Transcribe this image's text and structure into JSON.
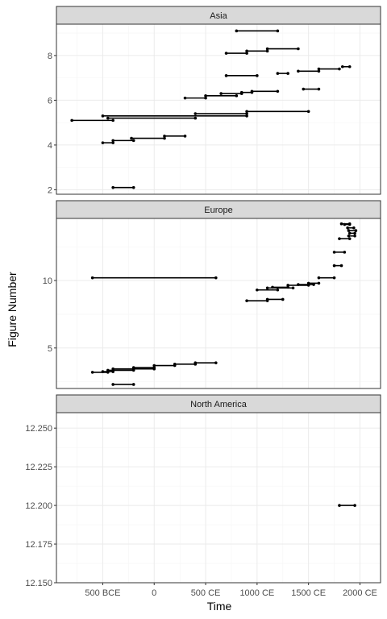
{
  "chart_data": {
    "type": "segment",
    "xlabel": "Time",
    "ylabel": "Figure Number",
    "x_range": [
      -950,
      2200
    ],
    "x_ticks": [
      {
        "value": -500,
        "label": "500 BCE"
      },
      {
        "value": 0,
        "label": "0"
      },
      {
        "value": 500,
        "label": "500 CE"
      },
      {
        "value": 1000,
        "label": "1000 CE"
      },
      {
        "value": 1500,
        "label": "1500 CE"
      },
      {
        "value": 2000,
        "label": "2000 CE"
      }
    ],
    "grid": true,
    "panels": [
      {
        "name": "Asia",
        "ylim": [
          1.8,
          9.4
        ],
        "y_ticks": [
          2,
          4,
          6,
          8
        ],
        "segments": [
          {
            "start": 800,
            "end": 1200,
            "y": 9.1
          },
          {
            "start": 700,
            "end": 900,
            "y": 8.1
          },
          {
            "start": 900,
            "end": 1100,
            "y": 8.2
          },
          {
            "start": 1100,
            "end": 1400,
            "y": 8.3
          },
          {
            "start": 1830,
            "end": 1900,
            "y": 7.5
          },
          {
            "start": 1600,
            "end": 1800,
            "y": 7.4
          },
          {
            "start": 1400,
            "end": 1600,
            "y": 7.3
          },
          {
            "start": 1200,
            "end": 1300,
            "y": 7.2
          },
          {
            "start": 700,
            "end": 1000,
            "y": 7.1
          },
          {
            "start": 1450,
            "end": 1600,
            "y": 6.5
          },
          {
            "start": 950,
            "end": 1200,
            "y": 6.4
          },
          {
            "start": 850,
            "end": 950,
            "y": 6.35
          },
          {
            "start": 650,
            "end": 850,
            "y": 6.3
          },
          {
            "start": 500,
            "end": 800,
            "y": 6.2
          },
          {
            "start": 300,
            "end": 500,
            "y": 6.1
          },
          {
            "start": 900,
            "end": 1500,
            "y": 5.5
          },
          {
            "start": 400,
            "end": 900,
            "y": 5.4
          },
          {
            "start": -500,
            "end": 900,
            "y": 5.3
          },
          {
            "start": -450,
            "end": 400,
            "y": 5.2
          },
          {
            "start": -800,
            "end": -400,
            "y": 5.1
          },
          {
            "start": 100,
            "end": 300,
            "y": 4.4
          },
          {
            "start": -221,
            "end": 100,
            "y": 4.3
          },
          {
            "start": -400,
            "end": -200,
            "y": 4.2
          },
          {
            "start": -500,
            "end": -400,
            "y": 4.1
          },
          {
            "start": -400,
            "end": -200,
            "y": 2.1
          }
        ]
      },
      {
        "name": "Europe",
        "ylim": [
          2.0,
          14.6
        ],
        "y_ticks": [
          5,
          10
        ],
        "segments": [
          {
            "start": 1820,
            "end": 1900,
            "y": 14.2
          },
          {
            "start": 1850,
            "end": 1900,
            "y": 14.15
          },
          {
            "start": 1880,
            "end": 1940,
            "y": 13.9
          },
          {
            "start": 1890,
            "end": 1960,
            "y": 13.7
          },
          {
            "start": 1900,
            "end": 1950,
            "y": 13.5
          },
          {
            "start": 1890,
            "end": 1950,
            "y": 13.3
          },
          {
            "start": 1800,
            "end": 1900,
            "y": 13.1
          },
          {
            "start": 1750,
            "end": 1850,
            "y": 12.1
          },
          {
            "start": 1750,
            "end": 1820,
            "y": 11.1
          },
          {
            "start": 1600,
            "end": 1750,
            "y": 10.2
          },
          {
            "start": 1500,
            "end": 1600,
            "y": 9.8
          },
          {
            "start": 1400,
            "end": 1550,
            "y": 9.7
          },
          {
            "start": 1300,
            "end": 1500,
            "y": 9.65
          },
          {
            "start": 1150,
            "end": 1300,
            "y": 9.5
          },
          {
            "start": 1100,
            "end": 1350,
            "y": 9.45
          },
          {
            "start": 1000,
            "end": 1200,
            "y": 9.3
          },
          {
            "start": 1100,
            "end": 1250,
            "y": 8.6
          },
          {
            "start": 900,
            "end": 1100,
            "y": 8.5
          },
          {
            "start": -600,
            "end": 600,
            "y": 10.2
          },
          {
            "start": 400,
            "end": 600,
            "y": 3.9
          },
          {
            "start": 200,
            "end": 400,
            "y": 3.8
          },
          {
            "start": 0,
            "end": 200,
            "y": 3.7
          },
          {
            "start": -200,
            "end": 0,
            "y": 3.55
          },
          {
            "start": -400,
            "end": 0,
            "y": 3.45
          },
          {
            "start": -450,
            "end": -200,
            "y": 3.35
          },
          {
            "start": -500,
            "end": -400,
            "y": 3.25
          },
          {
            "start": -600,
            "end": -450,
            "y": 3.2
          },
          {
            "start": -400,
            "end": -200,
            "y": 2.3
          }
        ]
      },
      {
        "name": "North America",
        "ylim": [
          12.15,
          12.26
        ],
        "y_ticks": [
          12.15,
          12.175,
          12.2,
          12.225,
          12.25
        ],
        "y_tick_labels": [
          "12.150",
          "12.175",
          "12.200",
          "12.225",
          "12.250"
        ],
        "segments": [
          {
            "start": 1800,
            "end": 1950,
            "y": 12.2
          }
        ]
      }
    ]
  }
}
